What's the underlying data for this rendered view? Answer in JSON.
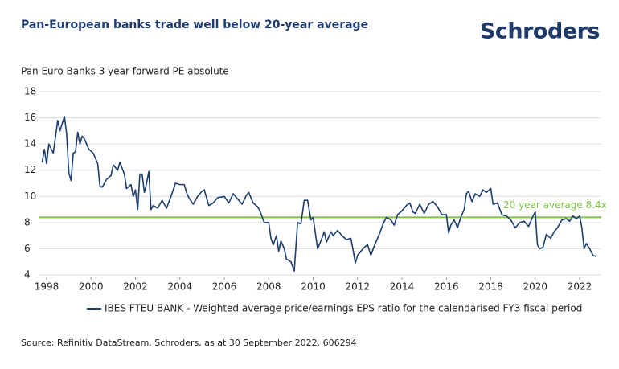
{
  "logo": "Schroders",
  "chart_data": {
    "type": "line",
    "title": "Pan-European banks trade well below 20-year average",
    "subtitle": "Pan Euro Banks 3 year forward PE absolute",
    "source": "Source: Refinitiv DataStream, Schroders, as at 30 September 2022. 606294",
    "xlim": [
      1997.7,
      2022.9
    ],
    "xticks": [
      1998,
      2000,
      2002,
      2004,
      2006,
      2008,
      2010,
      2012,
      2014,
      2016,
      2018,
      2020,
      2022
    ],
    "ylim": [
      4,
      18
    ],
    "yticks": [
      4,
      6,
      8,
      10,
      12,
      14,
      16,
      18
    ],
    "grid": true,
    "average": 8.4,
    "average_color": "#7dc242",
    "annotation": "20 year average 8.4x",
    "x": [
      1997.8,
      1997.9,
      1998.0,
      1998.1,
      1998.3,
      1998.5,
      1998.6,
      1998.8,
      1998.9,
      1999.0,
      1999.1,
      1999.2,
      1999.3,
      1999.4,
      1999.5,
      1999.6,
      1999.7,
      1999.9,
      2000.1,
      2000.3,
      2000.4,
      2000.5,
      2000.7,
      2000.9,
      2001.0,
      2001.2,
      2001.3,
      2001.5,
      2001.6,
      2001.8,
      2001.9,
      2002.0,
      2002.1,
      2002.2,
      2002.3,
      2002.4,
      2002.5,
      2002.6,
      2002.7,
      2002.8,
      2003.0,
      2003.2,
      2003.4,
      2003.6,
      2003.8,
      2004.0,
      2004.2,
      2004.3,
      2004.4,
      2004.6,
      2004.8,
      2005.0,
      2005.1,
      2005.3,
      2005.5,
      2005.7,
      2006.0,
      2006.2,
      2006.4,
      2006.6,
      2006.8,
      2007.0,
      2007.1,
      2007.3,
      2007.5,
      2007.6,
      2007.8,
      2008.0,
      2008.1,
      2008.2,
      2008.35,
      2008.45,
      2008.55,
      2008.7,
      2008.8,
      2009.0,
      2009.15,
      2009.3,
      2009.45,
      2009.6,
      2009.75,
      2009.9,
      2010.0,
      2010.2,
      2010.35,
      2010.5,
      2010.6,
      2010.8,
      2010.9,
      2011.1,
      2011.3,
      2011.5,
      2011.7,
      2011.8,
      2011.9,
      2012.0,
      2012.15,
      2012.3,
      2012.45,
      2012.6,
      2012.75,
      2012.9,
      2013.0,
      2013.15,
      2013.3,
      2013.5,
      2013.65,
      2013.8,
      2014.0,
      2014.2,
      2014.35,
      2014.5,
      2014.6,
      2014.8,
      2015.0,
      2015.2,
      2015.4,
      2015.6,
      2015.8,
      2016.0,
      2016.1,
      2016.2,
      2016.35,
      2016.5,
      2016.65,
      2016.8,
      2016.9,
      2017.0,
      2017.15,
      2017.3,
      2017.5,
      2017.65,
      2017.8,
      2018.0,
      2018.1,
      2018.3,
      2018.5,
      2018.7,
      2018.9,
      2019.1,
      2019.3,
      2019.5,
      2019.7,
      2019.9,
      2020.0,
      2020.1,
      2020.2,
      2020.35,
      2020.5,
      2020.7,
      2020.85,
      2021.0,
      2021.2,
      2021.4,
      2021.55,
      2021.7,
      2021.85,
      2022.0,
      2022.1,
      2022.2,
      2022.3,
      2022.45,
      2022.6,
      2022.75
    ],
    "series": [
      {
        "name": "IBES FTEU BANK - Weighted average price/earnings EPS ratio for the calendarised FY3 fiscal period",
        "color": "#1d3d6e",
        "values": [
          12.6,
          13.6,
          12.5,
          14.0,
          13.3,
          15.8,
          15.0,
          16.1,
          14.8,
          11.8,
          11.2,
          13.3,
          13.4,
          14.9,
          14.0,
          14.6,
          14.4,
          13.6,
          13.3,
          12.5,
          10.8,
          10.7,
          11.3,
          11.6,
          12.4,
          12.0,
          12.6,
          11.7,
          10.6,
          10.9,
          10.0,
          10.5,
          9.0,
          11.7,
          11.7,
          10.3,
          11.0,
          11.9,
          9.0,
          9.3,
          9.1,
          9.7,
          9.1,
          10.0,
          11.0,
          10.9,
          10.9,
          10.3,
          9.9,
          9.4,
          10.0,
          10.4,
          10.5,
          9.3,
          9.5,
          9.9,
          10.0,
          9.5,
          10.2,
          9.8,
          9.4,
          10.1,
          10.3,
          9.5,
          9.2,
          8.9,
          8.0,
          8.0,
          6.8,
          6.3,
          7.0,
          5.8,
          6.6,
          6.0,
          5.2,
          5.0,
          4.3,
          8.0,
          7.9,
          9.7,
          9.7,
          8.2,
          8.4,
          6.0,
          6.6,
          7.3,
          6.5,
          7.3,
          7.0,
          7.4,
          7.0,
          6.7,
          6.8,
          5.9,
          4.9,
          5.5,
          5.8,
          6.1,
          6.3,
          5.5,
          6.2,
          6.8,
          7.2,
          7.9,
          8.4,
          8.2,
          7.8,
          8.6,
          8.9,
          9.3,
          9.5,
          8.8,
          8.7,
          9.4,
          8.7,
          9.4,
          9.6,
          9.2,
          8.6,
          8.6,
          7.2,
          7.8,
          8.2,
          7.6,
          8.4,
          9.0,
          10.2,
          10.4,
          9.6,
          10.2,
          10.0,
          10.5,
          10.3,
          10.6,
          9.4,
          9.5,
          8.6,
          8.5,
          8.2,
          7.6,
          8.0,
          8.1,
          7.7,
          8.5,
          8.8,
          6.3,
          6.0,
          6.1,
          7.1,
          6.8,
          7.3,
          7.6,
          8.2,
          8.3,
          8.1,
          8.5,
          8.3,
          8.5,
          7.6,
          6.0,
          6.4,
          6.0,
          5.5,
          5.4
        ]
      }
    ]
  }
}
